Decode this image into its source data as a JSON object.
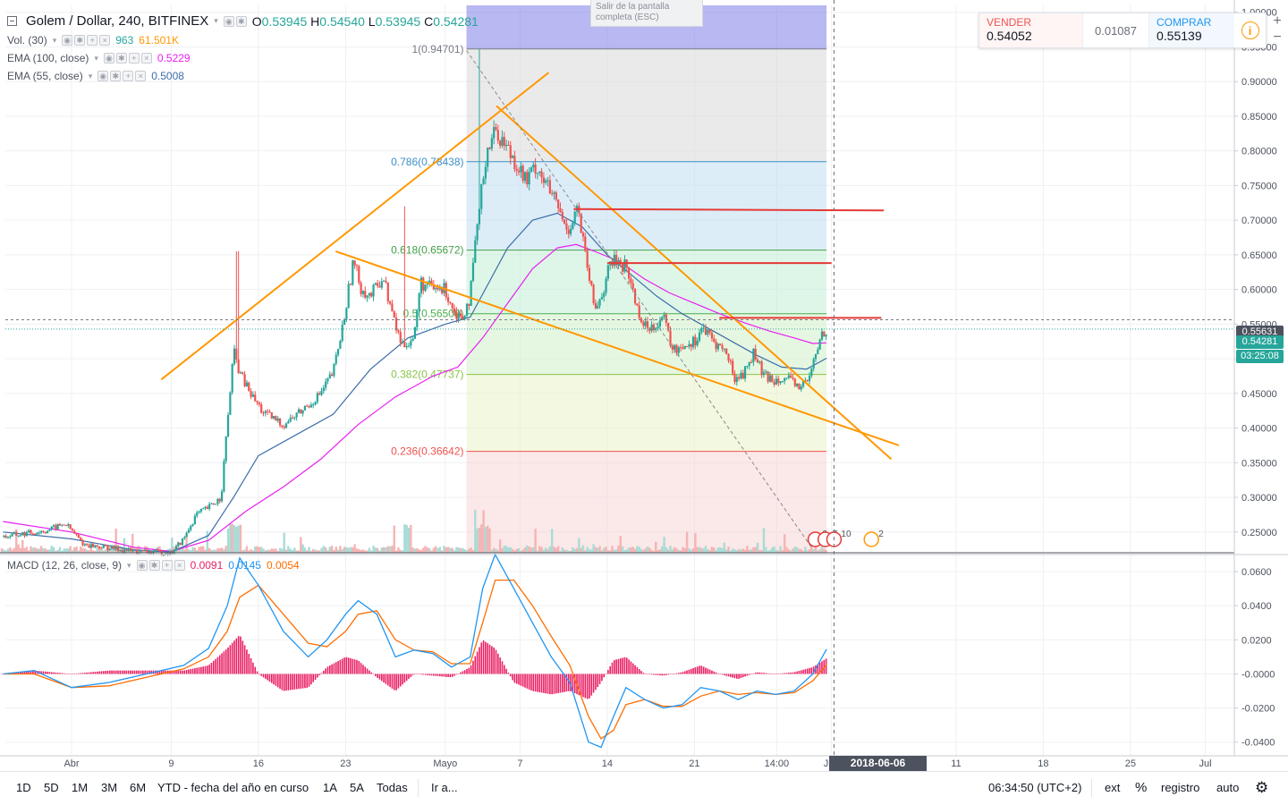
{
  "header": {
    "symbol": "Golem / Dollar, 240, BITFINEX",
    "ohlc": {
      "o_label": "O",
      "o": "0.53945",
      "h_label": "H",
      "h": "0.54540",
      "l_label": "L",
      "l": "0.53945",
      "c_label": "C",
      "c": "0.54281"
    },
    "fullscreen_hint": "Salir de la pantalla completa (ESC)"
  },
  "indicators": [
    {
      "name": "Vol. (30)",
      "values": [
        "963",
        "61.501K"
      ],
      "colors": [
        "#26a69a",
        "#ff9800"
      ]
    },
    {
      "name": "EMA (100, close)",
      "values": [
        "0.5229"
      ],
      "colors": [
        "#e91ef1"
      ]
    },
    {
      "name": "EMA (55, close)",
      "values": [
        "0.5008"
      ],
      "colors": [
        "#3c6ea8"
      ]
    }
  ],
  "macd_legend": {
    "name": "MACD (12, 26, close, 9)",
    "values": [
      "0.0091",
      "0.0145",
      "0.0054"
    ],
    "colors": [
      "#e91e63",
      "#2196f3",
      "#ff6d00"
    ]
  },
  "trade": {
    "sell_label": "VENDER",
    "sell": "0.54052",
    "spread": "0.01087",
    "buy_label": "COMPRAR",
    "buy": "0.55139"
  },
  "price_tags": {
    "alert": "0.55631",
    "current": "0.54281",
    "countdown": "03:25:08"
  },
  "crosshair_date": "2018-06-06 06:00:00",
  "bottom_bar": {
    "timeframes": [
      "1D",
      "5D",
      "1M",
      "3M",
      "6M",
      "YTD - fecha del año en curso",
      "1A",
      "5A",
      "Todas"
    ],
    "goto": "Ir a...",
    "clock": "06:34:50 (UTC+2)",
    "toggles": [
      "ext",
      "%",
      "registro",
      "auto"
    ]
  },
  "events": [
    {
      "label": "3"
    },
    {
      "label": "7"
    },
    {
      "label": "10"
    },
    {
      "label": "2"
    }
  ],
  "chart_data": [
    {
      "type": "candlestick",
      "title": "Golem / Dollar, 240, BITFINEX",
      "ylim": [
        0.22,
        1.01
      ],
      "y_ticks": [
        0.25,
        0.3,
        0.35,
        0.4,
        0.45,
        0.5,
        0.55,
        0.6,
        0.65,
        0.7,
        0.75,
        0.8,
        0.85,
        0.9,
        0.95,
        1.0
      ],
      "y_tick_labels": [
        "0.25000",
        "0.30000",
        "0.35000",
        "0.40000",
        "0.45000",
        "0.50000",
        "0.55000",
        "0.60000",
        "0.65000",
        "0.70000",
        "0.75000",
        "0.80000",
        "0.85000",
        "0.90000",
        "0.95000",
        "1.00000"
      ],
      "x_ticks": [
        {
          "label": "Abr",
          "day": 0
        },
        {
          "label": "9",
          "day": 8
        },
        {
          "label": "16",
          "day": 15
        },
        {
          "label": "23",
          "day": 22
        },
        {
          "label": "Mayo",
          "day": 30
        },
        {
          "label": "7",
          "day": 36
        },
        {
          "label": "14",
          "day": 43
        },
        {
          "label": "21",
          "day": 50
        },
        {
          "label": "14:00",
          "day": 56.6
        },
        {
          "label": "Jun",
          "day": 61
        },
        {
          "label": "11",
          "day": 71
        },
        {
          "label": "18",
          "day": 78
        },
        {
          "label": "25",
          "day": 85
        },
        {
          "label": "Jul",
          "day": 91
        }
      ],
      "x_range_days": [
        -5.6,
        101.5
      ],
      "price_path": [
        [
          -5.5,
          0.243
        ],
        [
          -2,
          0.252
        ],
        [
          -0.5,
          0.262
        ],
        [
          1,
          0.232
        ],
        [
          5,
          0.222
        ],
        [
          8,
          0.22
        ],
        [
          9,
          0.24
        ],
        [
          10,
          0.275
        ],
        [
          11,
          0.285
        ],
        [
          12,
          0.3
        ],
        [
          13,
          0.51
        ],
        [
          13.6,
          0.475
        ],
        [
          14.5,
          0.445
        ],
        [
          15.5,
          0.42
        ],
        [
          17,
          0.405
        ],
        [
          18.5,
          0.425
        ],
        [
          20,
          0.45
        ],
        [
          21,
          0.48
        ],
        [
          21.8,
          0.55
        ],
        [
          22.6,
          0.64
        ],
        [
          23.3,
          0.6
        ],
        [
          24,
          0.59
        ],
        [
          25,
          0.62
        ],
        [
          25.8,
          0.56
        ],
        [
          26.5,
          0.52
        ],
        [
          27.5,
          0.53
        ],
        [
          28,
          0.61
        ],
        [
          29,
          0.6
        ],
        [
          30,
          0.6
        ],
        [
          30.7,
          0.57
        ],
        [
          31.3,
          0.56
        ],
        [
          32,
          0.59
        ],
        [
          32.5,
          0.68
        ],
        [
          33.3,
          0.8
        ],
        [
          34,
          0.83
        ],
        [
          34.8,
          0.81
        ],
        [
          35.8,
          0.78
        ],
        [
          36.5,
          0.755
        ],
        [
          37.3,
          0.78
        ],
        [
          38,
          0.755
        ],
        [
          39,
          0.72
        ],
        [
          39.6,
          0.69
        ],
        [
          40,
          0.69
        ],
        [
          40.6,
          0.72
        ],
        [
          41.3,
          0.64
        ],
        [
          42,
          0.57
        ],
        [
          42.7,
          0.6
        ],
        [
          43.3,
          0.64
        ],
        [
          44,
          0.64
        ],
        [
          44.6,
          0.63
        ],
        [
          45.3,
          0.58
        ],
        [
          46,
          0.545
        ],
        [
          46.8,
          0.55
        ],
        [
          47.5,
          0.56
        ],
        [
          48.3,
          0.51
        ],
        [
          49,
          0.52
        ],
        [
          50,
          0.525
        ],
        [
          50.6,
          0.545
        ],
        [
          51.5,
          0.525
        ],
        [
          52.5,
          0.51
        ],
        [
          53.3,
          0.47
        ],
        [
          54,
          0.48
        ],
        [
          54.8,
          0.51
        ],
        [
          55.5,
          0.475
        ],
        [
          56.3,
          0.47
        ],
        [
          57,
          0.475
        ],
        [
          57.8,
          0.465
        ],
        [
          58.5,
          0.46
        ],
        [
          59.2,
          0.47
        ],
        [
          59.8,
          0.51
        ],
        [
          60.3,
          0.54
        ],
        [
          60.6,
          0.5428
        ]
      ],
      "ema100_path": [
        [
          -5.5,
          0.265
        ],
        [
          0,
          0.25
        ],
        [
          5,
          0.228
        ],
        [
          8,
          0.222
        ],
        [
          11,
          0.238
        ],
        [
          14,
          0.28
        ],
        [
          17,
          0.315
        ],
        [
          20,
          0.355
        ],
        [
          23,
          0.405
        ],
        [
          26,
          0.445
        ],
        [
          29,
          0.475
        ],
        [
          31,
          0.488
        ],
        [
          33,
          0.53
        ],
        [
          35,
          0.58
        ],
        [
          37,
          0.63
        ],
        [
          39,
          0.66
        ],
        [
          40.5,
          0.665
        ],
        [
          42,
          0.655
        ],
        [
          44,
          0.64
        ],
        [
          46,
          0.615
        ],
        [
          48,
          0.595
        ],
        [
          50,
          0.58
        ],
        [
          52,
          0.565
        ],
        [
          54,
          0.552
        ],
        [
          56,
          0.54
        ],
        [
          58,
          0.53
        ],
        [
          59.5,
          0.522
        ],
        [
          60.6,
          0.523
        ]
      ],
      "ema55_path": [
        [
          -5.5,
          0.25
        ],
        [
          0,
          0.24
        ],
        [
          5,
          0.224
        ],
        [
          8,
          0.221
        ],
        [
          11,
          0.245
        ],
        [
          13,
          0.3
        ],
        [
          15,
          0.36
        ],
        [
          18,
          0.39
        ],
        [
          21,
          0.42
        ],
        [
          24,
          0.485
        ],
        [
          27,
          0.53
        ],
        [
          30,
          0.55
        ],
        [
          32,
          0.56
        ],
        [
          33.5,
          0.61
        ],
        [
          35,
          0.66
        ],
        [
          37,
          0.7
        ],
        [
          39,
          0.71
        ],
        [
          41,
          0.69
        ],
        [
          43,
          0.65
        ],
        [
          45,
          0.62
        ],
        [
          47,
          0.59
        ],
        [
          49,
          0.565
        ],
        [
          51,
          0.545
        ],
        [
          53,
          0.525
        ],
        [
          55,
          0.505
        ],
        [
          57,
          0.488
        ],
        [
          59,
          0.485
        ],
        [
          60.6,
          0.5008
        ]
      ],
      "fibonacci": {
        "day_range": [
          31.7,
          60.6
        ],
        "levels": [
          {
            "label": "1(0.94701)",
            "value": 0.94701,
            "line": "#787b86",
            "text": "#787b86"
          },
          {
            "label": "0.786(0.78438)",
            "value": 0.78438,
            "line": "#3d8fc8",
            "text": "#3d8fc8"
          },
          {
            "label": "0.618(0.65672)",
            "value": 0.65672,
            "line": "#43a047",
            "text": "#43a047"
          },
          {
            "label": "0.5(0.56500)",
            "value": 0.565,
            "line": "#4caf50",
            "text": "#4caf50"
          },
          {
            "label": "0.382(0.47737)",
            "value": 0.47737,
            "line": "#8bc34a",
            "text": "#8bc34a"
          },
          {
            "label": "0.236(0.36642)",
            "value": 0.36642,
            "line": "#ef5350",
            "text": "#ef5350"
          }
        ],
        "zones": [
          {
            "from": 0.94701,
            "to": 1.01,
            "color": "#7e7ee8"
          },
          {
            "from": 0.78438,
            "to": 0.94701,
            "color": "#d9d9d9"
          },
          {
            "from": 0.65672,
            "to": 0.78438,
            "color": "#bfdff3"
          },
          {
            "from": 0.565,
            "to": 0.65672,
            "color": "#c3eed5"
          },
          {
            "from": 0.47737,
            "to": 0.565,
            "color": "#d2f0c8"
          },
          {
            "from": 0.36642,
            "to": 0.47737,
            "color": "#e9f3c7"
          },
          {
            "from": 0.22,
            "to": 0.36642,
            "color": "#f8d6d6"
          }
        ]
      },
      "trendlines": [
        {
          "from": [
            7.2,
            0.47
          ],
          "to": [
            38.3,
            0.913
          ],
          "color": "#ff9800"
        },
        {
          "from": [
            21.2,
            0.655
          ],
          "to": [
            66.4,
            0.375
          ],
          "color": "#ff9800"
        },
        {
          "from": [
            34.1,
            0.865
          ],
          "to": [
            65.8,
            0.355
          ],
          "color": "#ff9800"
        },
        {
          "from": [
            31.7,
            0.945
          ],
          "to": [
            59.5,
            0.225
          ],
          "color": "#888888",
          "dashed": true
        },
        {
          "from": [
            40.3,
            0.716
          ],
          "to": [
            65.2,
            0.714
          ],
          "color": "#e53935"
        },
        {
          "from": [
            43.0,
            0.638
          ],
          "to": [
            61.0,
            0.638
          ],
          "color": "#e53935"
        },
        {
          "from": [
            52.0,
            0.559
          ],
          "to": [
            65.0,
            0.559
          ],
          "color": "#e53935"
        }
      ],
      "volume_note": "volume histogram along bottom of price pane"
    },
    {
      "type": "line",
      "title": "MACD (12, 26, close, 9)",
      "ylim": [
        -0.048,
        0.07
      ],
      "y_ticks": [
        -0.04,
        -0.02,
        0.0,
        0.02,
        0.04,
        0.06
      ],
      "y_tick_labels": [
        "-0.0400",
        "-0.0200",
        "-0.0000",
        "0.0200",
        "0.0400",
        "0.0600"
      ],
      "series": [
        {
          "name": "MACD",
          "color": "#2196f3",
          "points": [
            [
              -5.5,
              0.0
            ],
            [
              -3,
              0.002
            ],
            [
              0,
              -0.008
            ],
            [
              3,
              -0.005
            ],
            [
              6,
              0.0
            ],
            [
              9,
              0.005
            ],
            [
              11,
              0.015
            ],
            [
              12.5,
              0.04
            ],
            [
              13.5,
              0.068
            ],
            [
              15,
              0.052
            ],
            [
              17,
              0.025
            ],
            [
              19,
              0.01
            ],
            [
              20.5,
              0.02
            ],
            [
              22,
              0.035
            ],
            [
              23,
              0.043
            ],
            [
              24.5,
              0.035
            ],
            [
              26,
              0.01
            ],
            [
              27.5,
              0.014
            ],
            [
              29,
              0.012
            ],
            [
              30.5,
              0.004
            ],
            [
              32,
              0.01
            ],
            [
              33,
              0.05
            ],
            [
              34,
              0.07
            ],
            [
              35.5,
              0.05
            ],
            [
              37,
              0.03
            ],
            [
              38.5,
              0.01
            ],
            [
              40,
              -0.005
            ],
            [
              41.5,
              -0.04
            ],
            [
              42.5,
              -0.043
            ],
            [
              43.5,
              -0.025
            ],
            [
              44.5,
              -0.008
            ],
            [
              46,
              -0.015
            ],
            [
              47.5,
              -0.02
            ],
            [
              49,
              -0.018
            ],
            [
              50.5,
              -0.008
            ],
            [
              52,
              -0.01
            ],
            [
              53.5,
              -0.015
            ],
            [
              55,
              -0.01
            ],
            [
              56.5,
              -0.012
            ],
            [
              58,
              -0.01
            ],
            [
              59.5,
              0.0
            ],
            [
              60.6,
              0.0145
            ]
          ]
        },
        {
          "name": "Signal",
          "color": "#ff6d00",
          "points": [
            [
              -5.5,
              0.0
            ],
            [
              -3,
              0.0
            ],
            [
              0,
              -0.008
            ],
            [
              3,
              -0.007
            ],
            [
              6,
              -0.002
            ],
            [
              9,
              0.003
            ],
            [
              11,
              0.01
            ],
            [
              12.5,
              0.025
            ],
            [
              13.5,
              0.045
            ],
            [
              15,
              0.052
            ],
            [
              17,
              0.035
            ],
            [
              19,
              0.018
            ],
            [
              20.5,
              0.016
            ],
            [
              22,
              0.025
            ],
            [
              23,
              0.035
            ],
            [
              24.5,
              0.037
            ],
            [
              26,
              0.02
            ],
            [
              27.5,
              0.014
            ],
            [
              29,
              0.013
            ],
            [
              30.5,
              0.006
            ],
            [
              32,
              0.006
            ],
            [
              33,
              0.03
            ],
            [
              34,
              0.055
            ],
            [
              35.5,
              0.055
            ],
            [
              37,
              0.04
            ],
            [
              38.5,
              0.022
            ],
            [
              40,
              0.005
            ],
            [
              41.5,
              -0.025
            ],
            [
              42.5,
              -0.038
            ],
            [
              43.5,
              -0.033
            ],
            [
              44.5,
              -0.018
            ],
            [
              46,
              -0.015
            ],
            [
              47.5,
              -0.019
            ],
            [
              49,
              -0.019
            ],
            [
              50.5,
              -0.013
            ],
            [
              52,
              -0.01
            ],
            [
              53.5,
              -0.012
            ],
            [
              55,
              -0.011
            ],
            [
              56.5,
              -0.012
            ],
            [
              58,
              -0.011
            ],
            [
              59.5,
              -0.004
            ],
            [
              60.6,
              0.0054
            ]
          ]
        }
      ],
      "histogram": {
        "name": "Histogram",
        "color": "#e91e63",
        "last": 0.0091
      }
    }
  ]
}
